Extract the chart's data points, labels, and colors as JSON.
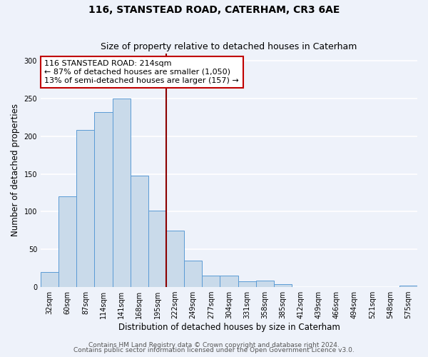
{
  "title": "116, STANSTEAD ROAD, CATERHAM, CR3 6AE",
  "subtitle": "Size of property relative to detached houses in Caterham",
  "xlabel": "Distribution of detached houses by size in Caterham",
  "ylabel": "Number of detached properties",
  "bin_labels": [
    "32sqm",
    "60sqm",
    "87sqm",
    "114sqm",
    "141sqm",
    "168sqm",
    "195sqm",
    "222sqm",
    "249sqm",
    "277sqm",
    "304sqm",
    "331sqm",
    "358sqm",
    "385sqm",
    "412sqm",
    "439sqm",
    "466sqm",
    "494sqm",
    "521sqm",
    "548sqm",
    "575sqm"
  ],
  "bar_values": [
    20,
    120,
    208,
    232,
    250,
    148,
    101,
    75,
    35,
    15,
    15,
    8,
    9,
    4,
    0,
    0,
    0,
    0,
    0,
    0,
    2
  ],
  "bar_color": "#c9daea",
  "bar_edge_color": "#5b9bd5",
  "red_line_x": 6.5,
  "red_line_color": "#8b0000",
  "annotation_text_line1": "116 STANSTEAD ROAD: 214sqm",
  "annotation_text_line2": "← 87% of detached houses are smaller (1,050)",
  "annotation_text_line3": "13% of semi-detached houses are larger (157) →",
  "annotation_box_edge_color": "#c00000",
  "ylim": [
    0,
    310
  ],
  "yticks": [
    0,
    50,
    100,
    150,
    200,
    250,
    300
  ],
  "background_color": "#eef2fa",
  "grid_color": "#ffffff",
  "footer_line1": "Contains HM Land Registry data © Crown copyright and database right 2024.",
  "footer_line2": "Contains public sector information licensed under the Open Government Licence v3.0.",
  "title_fontsize": 10,
  "subtitle_fontsize": 9,
  "axis_label_fontsize": 8.5,
  "tick_fontsize": 7,
  "annotation_fontsize": 8,
  "footer_fontsize": 6.5
}
